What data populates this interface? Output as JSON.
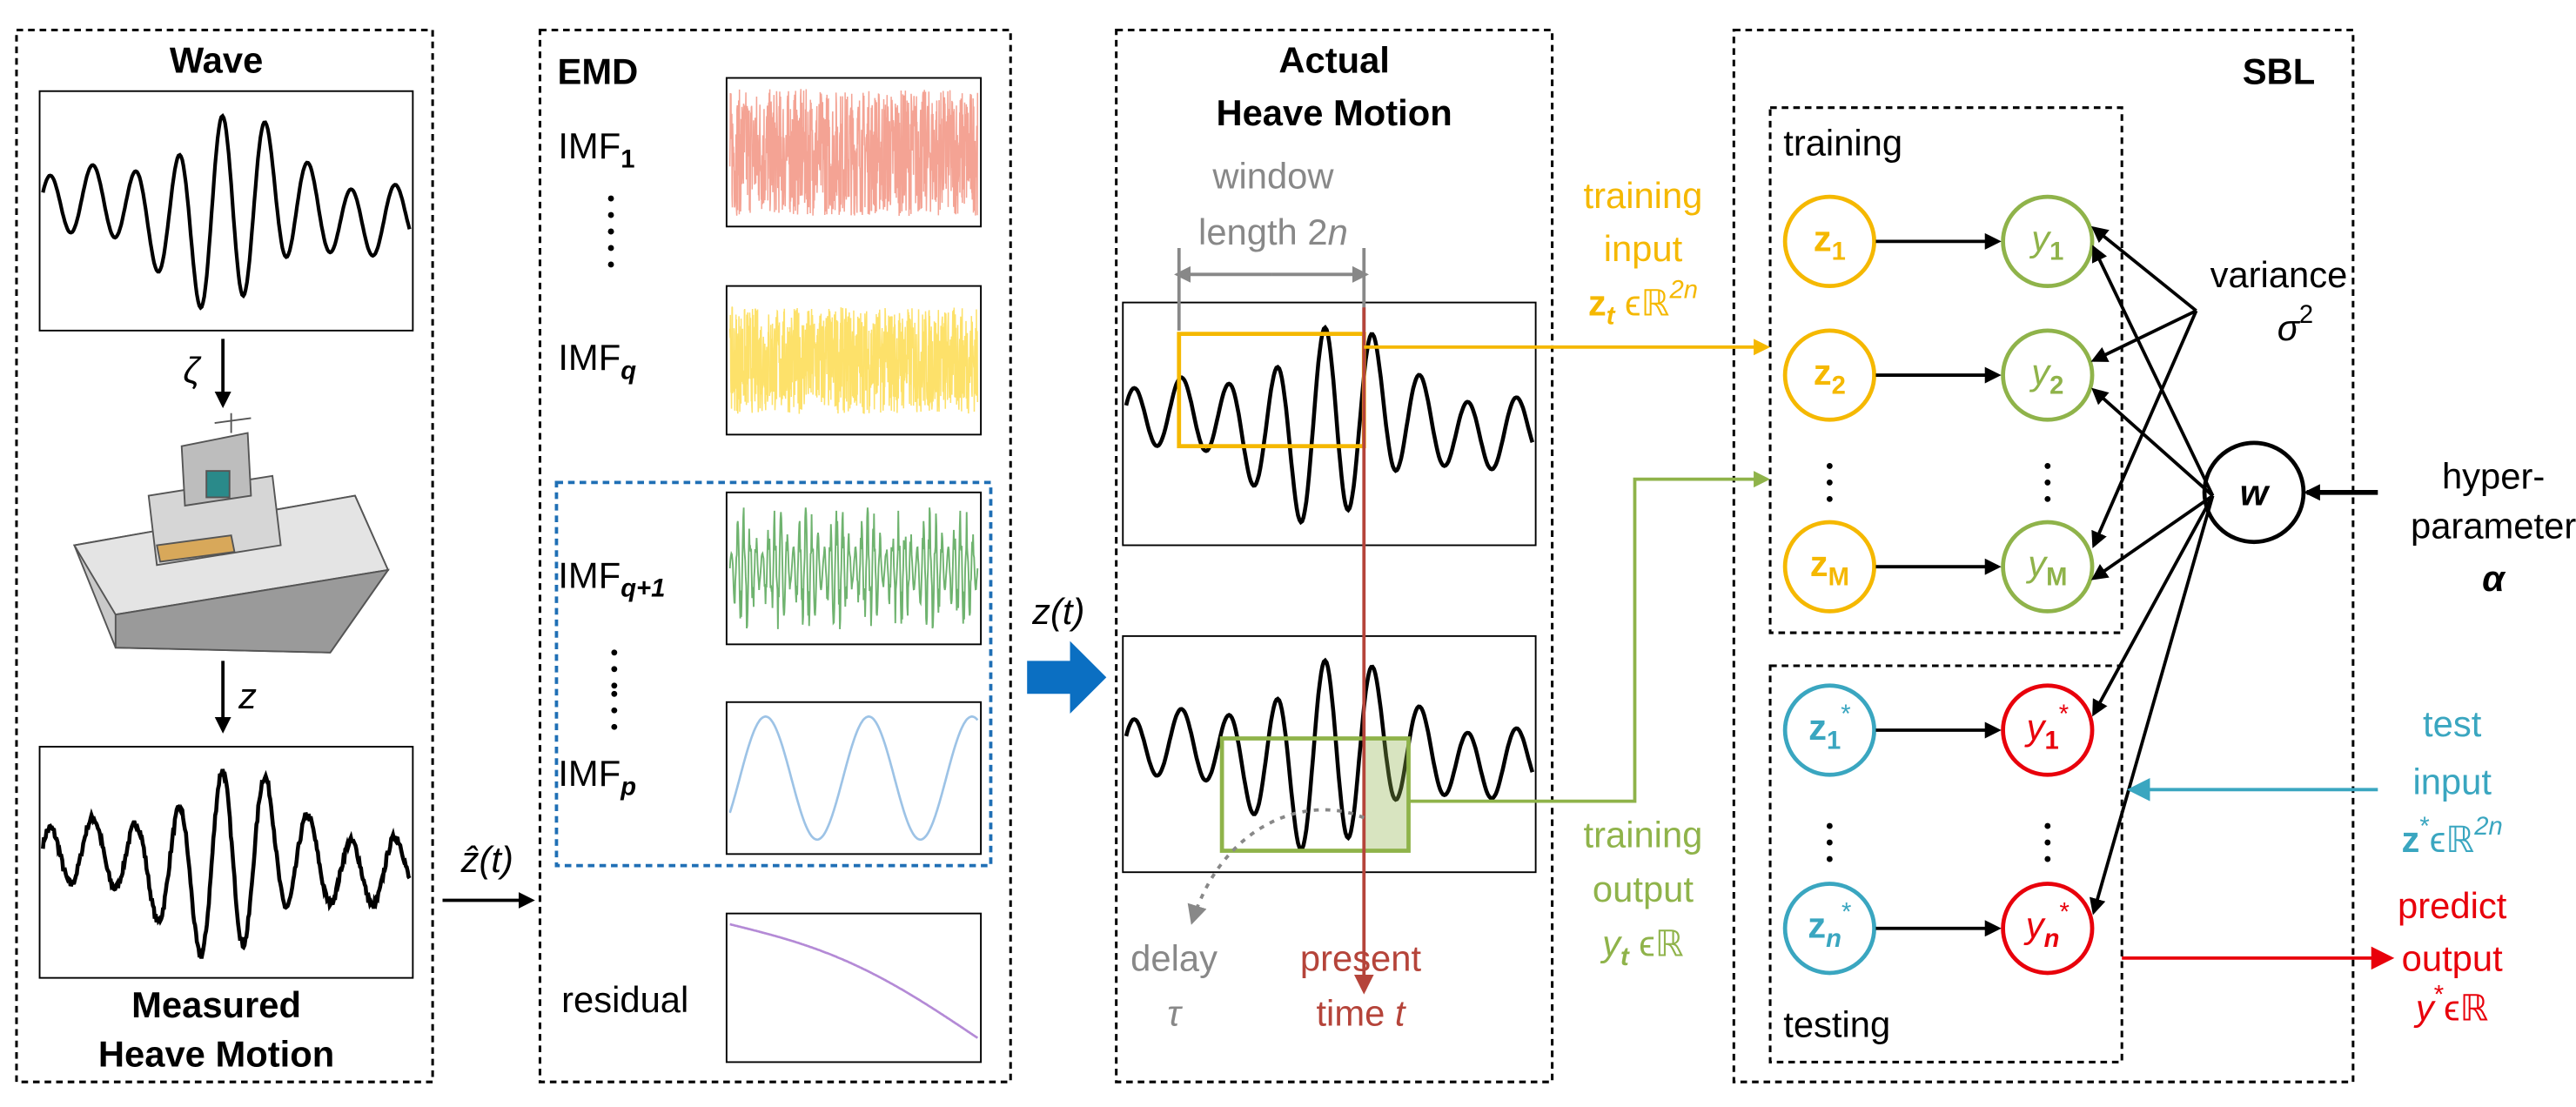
{
  "wave_panel": {
    "title": "Wave",
    "caption": [
      "Measured",
      "Heave Motion"
    ],
    "zeta": "ζ",
    "z": "z"
  },
  "zhat": "ẑ(t)",
  "emd_panel": {
    "title": "EMD",
    "imfs": [
      [
        "IMF",
        "1"
      ],
      [
        "IMF",
        "q"
      ],
      [
        "IMF",
        "q+1"
      ],
      [
        "IMF",
        "p"
      ]
    ],
    "residual": "residual"
  },
  "zt": "z(t)",
  "heave_panel": {
    "title": [
      "Actual",
      "Heave Motion"
    ],
    "window": [
      "window",
      "length 2",
      "n"
    ],
    "delay": [
      "delay",
      "τ"
    ],
    "present": [
      "present",
      "time ",
      "t"
    ]
  },
  "training_input": {
    "lines": [
      "training",
      "input"
    ],
    "symbol": [
      "z",
      "t",
      " ϵℝ",
      "2n"
    ]
  },
  "training_output": {
    "lines": [
      "training",
      "output"
    ],
    "symbol": [
      "y",
      "t",
      " ϵℝ"
    ]
  },
  "sbl_panel": {
    "title": "SBL",
    "training": "training",
    "testing": "testing",
    "train_inputs": [
      [
        "z",
        "1"
      ],
      [
        "z",
        "2"
      ],
      [
        "z",
        "M"
      ]
    ],
    "train_outputs": [
      [
        "y",
        "1"
      ],
      [
        "y",
        "2"
      ],
      [
        "y",
        "M"
      ]
    ],
    "test_inputs": [
      [
        "z",
        "1",
        "*"
      ],
      [
        "z",
        "n",
        "*"
      ]
    ],
    "test_outputs": [
      [
        "y",
        "1",
        "*"
      ],
      [
        "y",
        "n",
        "*"
      ]
    ],
    "weight": "w",
    "variance": [
      "variance",
      "σ",
      "2"
    ],
    "hyper": [
      "hyper-",
      "parameter",
      "α"
    ],
    "test_input": {
      "lines": [
        "test",
        "input"
      ],
      "symbol": [
        "z",
        "*",
        "ϵℝ",
        "2n"
      ]
    },
    "predict": {
      "lines": [
        "predict",
        "output"
      ],
      "symbol": [
        "y",
        "*",
        "ϵℝ"
      ]
    }
  }
}
